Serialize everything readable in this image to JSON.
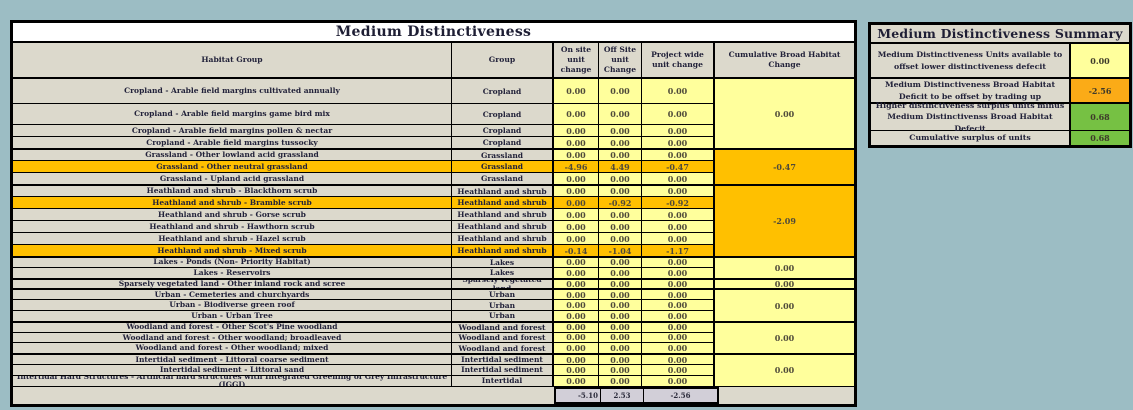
{
  "colors": {
    "page_background": "#9cbdc4",
    "cell_beige": "#dcd9cc",
    "value_yellow": "#ffff9c",
    "highlight_orange": "#ffc000",
    "summary_orange": "#fbab17",
    "summary_green": "#76c143",
    "totals_grey": "#d2cfd8",
    "border_black": "#000000"
  },
  "main_table": {
    "title": "Medium Distinctiveness",
    "columns": [
      "Habitat Group",
      "Group",
      "On site unit change",
      "Off Site unit Change",
      "Project wide unit change",
      "Cumulative Broad Habitat Change"
    ],
    "rows": [
      {
        "habitat": "Cropland - Arable field margins cultivated annually",
        "group": "Cropland",
        "on": "0.00",
        "off": "0.00",
        "project": "0.00",
        "highlight": false
      },
      {
        "habitat": "Cropland - Arable field margins game bird mix",
        "group": "Cropland",
        "on": "0.00",
        "off": "0.00",
        "project": "0.00",
        "highlight": false
      },
      {
        "habitat": "Cropland - Arable field margins pollen & nectar",
        "group": "Cropland",
        "on": "0.00",
        "off": "0.00",
        "project": "0.00",
        "highlight": false
      },
      {
        "habitat": "Cropland - Arable field margins tussocky",
        "group": "Cropland",
        "on": "0.00",
        "off": "0.00",
        "project": "0.00",
        "highlight": false
      },
      {
        "habitat": "Grassland - Other lowland acid grassland",
        "group": "Grassland",
        "on": "0.00",
        "off": "0.00",
        "project": "0.00",
        "highlight": false
      },
      {
        "habitat": "Grassland - Other neutral grassland",
        "group": "Grassland",
        "on": "-4.96",
        "off": "4.49",
        "project": "-0.47",
        "highlight": true
      },
      {
        "habitat": "Grassland - Upland acid grassland",
        "group": "Grassland",
        "on": "0.00",
        "off": "0.00",
        "project": "0.00",
        "highlight": false
      },
      {
        "habitat": "Heathland and shrub - Blackthorn scrub",
        "group": "Heathland and shrub",
        "on": "0.00",
        "off": "0.00",
        "project": "0.00",
        "highlight": false
      },
      {
        "habitat": "Heathland and shrub - Bramble scrub",
        "group": "Heathland and shrub",
        "on": "0.00",
        "off": "-0.92",
        "project": "-0.92",
        "highlight": true
      },
      {
        "habitat": "Heathland and shrub - Gorse scrub",
        "group": "Heathland and shrub",
        "on": "0.00",
        "off": "0.00",
        "project": "0.00",
        "highlight": false
      },
      {
        "habitat": "Heathland and shrub - Hawthorn scrub",
        "group": "Heathland and shrub",
        "on": "0.00",
        "off": "0.00",
        "project": "0.00",
        "highlight": false
      },
      {
        "habitat": "Heathland and shrub - Hazel scrub",
        "group": "Heathland and shrub",
        "on": "0.00",
        "off": "0.00",
        "project": "0.00",
        "highlight": false
      },
      {
        "habitat": "Heathland and shrub - Mixed scrub",
        "group": "Heathland and shrub",
        "on": "-0.14",
        "off": "-1.04",
        "project": "-1.17",
        "highlight": true
      },
      {
        "habitat": "Lakes - Ponds (Non- Priority Habitat)",
        "group": "Lakes",
        "on": "0.00",
        "off": "0.00",
        "project": "0.00",
        "highlight": false
      },
      {
        "habitat": "Lakes - Reservoirs",
        "group": "Lakes",
        "on": "0.00",
        "off": "0.00",
        "project": "0.00",
        "highlight": false
      },
      {
        "habitat": "Sparsely vegetated land - Other inland rock and scree",
        "group": "Sparsely vegetated land",
        "on": "0.00",
        "off": "0.00",
        "project": "0.00",
        "highlight": false
      },
      {
        "habitat": "Urban - Cemeteries and churchyards",
        "group": "Urban",
        "on": "0.00",
        "off": "0.00",
        "project": "0.00",
        "highlight": false
      },
      {
        "habitat": "Urban - Biodiverse green roof",
        "group": "Urban",
        "on": "0.00",
        "off": "0.00",
        "project": "0.00",
        "highlight": false
      },
      {
        "habitat": "Urban - Urban Tree",
        "group": "Urban",
        "on": "0.00",
        "off": "0.00",
        "project": "0.00",
        "highlight": false
      },
      {
        "habitat": "Woodland and forest - Other Scot's Pine woodland",
        "group": "Woodland and forest",
        "on": "0.00",
        "off": "0.00",
        "project": "0.00",
        "highlight": false
      },
      {
        "habitat": "Woodland and forest - Other woodland; broadleaved",
        "group": "Woodland and forest",
        "on": "0.00",
        "off": "0.00",
        "project": "0.00",
        "highlight": false
      },
      {
        "habitat": "Woodland and forest - Other woodland; mixed",
        "group": "Woodland and forest",
        "on": "0.00",
        "off": "0.00",
        "project": "0.00",
        "highlight": false
      },
      {
        "habitat": "Intertidal sediment - Littoral coarse sediment",
        "group": "Intertidal sediment",
        "on": "0.00",
        "off": "0.00",
        "project": "0.00",
        "highlight": false
      },
      {
        "habitat": "Intertidal sediment - Littoral sand",
        "group": "Intertidal sediment",
        "on": "0.00",
        "off": "0.00",
        "project": "0.00",
        "highlight": false
      },
      {
        "habitat": "Intertidal Hard Structures - Artificial hard structures with Integrated Greening of Grey Infrastructure (IGGI)",
        "group": "Intertidal",
        "on": "0.00",
        "off": "0.00",
        "project": "0.00",
        "highlight": false
      }
    ],
    "cumulative_blocks": [
      {
        "span": 4,
        "value": "0.00",
        "highlight": false
      },
      {
        "span": 3,
        "value": "-0.47",
        "highlight": true
      },
      {
        "span": 6,
        "value": "-2.09",
        "highlight": true
      },
      {
        "span": 2,
        "value": "0.00",
        "highlight": false
      },
      {
        "span": 1,
        "value": "0.00",
        "highlight": false
      },
      {
        "span": 3,
        "value": "0.00",
        "highlight": false
      },
      {
        "span": 3,
        "value": "0.00",
        "highlight": false
      },
      {
        "span": 3,
        "value": "0.00",
        "highlight": false
      }
    ],
    "totals": {
      "on": "-5.10",
      "off": "2.53",
      "project": "-2.56"
    }
  },
  "summary_table": {
    "title": "Medium Distinctiveness Summary",
    "rows": [
      {
        "label": "Medium Distinctiveness Units available to offset lower distinctiveness defecit",
        "value": "0.00",
        "color": "value_yellow"
      },
      {
        "label": "Medium Distinctiveness Broad Habitat Deficit to be offset by trading up",
        "value": "-2.56",
        "color": "summary_orange"
      },
      {
        "label": "Higher distinctiveness surplus units minus Medium Distinctivenss Broad Habitat Defecit",
        "value": "0.68",
        "color": "summary_green"
      },
      {
        "label": "Cumulative surplus of units",
        "value": "0.68",
        "color": "summary_green"
      }
    ]
  }
}
